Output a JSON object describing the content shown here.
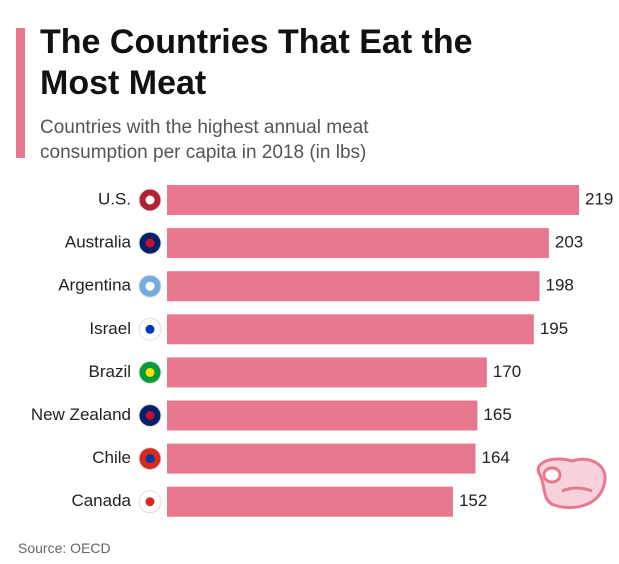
{
  "chart_data": {
    "type": "bar",
    "orientation": "horizontal",
    "title": "The Countries That Eat the Most Meat",
    "subtitle": "Countries with the highest annual meat consumption per capita in 2018 (in lbs)",
    "categories": [
      "U.S.",
      "Australia",
      "Argentina",
      "Israel",
      "Brazil",
      "New Zealand",
      "Chile",
      "Canada"
    ],
    "values": [
      219,
      203,
      198,
      195,
      170,
      165,
      164,
      152
    ],
    "color": "#e8788f",
    "source": "Source: OECD"
  }
}
